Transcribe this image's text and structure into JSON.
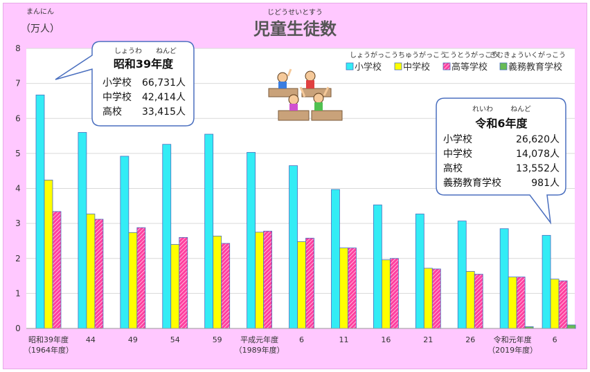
{
  "chart_data": {
    "type": "bar",
    "title": "児童生徒数",
    "title_ruby": "じどうせいとすう",
    "unit_label": "（万人）",
    "unit_ruby": "まんにん",
    "ylim": [
      0,
      8
    ],
    "yticks": [
      0,
      1,
      2,
      3,
      4,
      5,
      6,
      7,
      8
    ],
    "grid": true,
    "legend_position": "top-right",
    "categories": [
      {
        "label": "昭和39年度",
        "sub": "（1964年度）"
      },
      {
        "label": "44",
        "sub": ""
      },
      {
        "label": "49",
        "sub": ""
      },
      {
        "label": "54",
        "sub": ""
      },
      {
        "label": "59",
        "sub": ""
      },
      {
        "label": "平成元年度",
        "sub": "（1989年度）"
      },
      {
        "label": "6",
        "sub": ""
      },
      {
        "label": "11",
        "sub": ""
      },
      {
        "label": "16",
        "sub": ""
      },
      {
        "label": "21",
        "sub": ""
      },
      {
        "label": "26",
        "sub": ""
      },
      {
        "label": "令和元年度",
        "sub": "（2019年度）"
      },
      {
        "label": "6",
        "sub": ""
      }
    ],
    "series": [
      {
        "name": "小学校",
        "ruby": "しょうがっこう",
        "color": "#33ecf5",
        "pattern": "solid",
        "values": [
          6.67,
          5.6,
          4.92,
          5.26,
          5.55,
          5.03,
          4.65,
          3.97,
          3.53,
          3.27,
          3.07,
          2.85,
          2.66
        ]
      },
      {
        "name": "中学校",
        "ruby": "ちゅうがっこう",
        "color": "#ffff00",
        "pattern": "solid",
        "values": [
          4.24,
          3.27,
          2.74,
          2.4,
          2.64,
          2.75,
          2.48,
          2.3,
          1.96,
          1.72,
          1.63,
          1.47,
          1.41
        ]
      },
      {
        "name": "高等学校",
        "ruby": "こうとうがっこう",
        "color": "#ff3fa0",
        "pattern": "hatch",
        "values": [
          3.34,
          3.12,
          2.88,
          2.6,
          2.43,
          2.78,
          2.58,
          2.3,
          2.0,
          1.7,
          1.55,
          1.47,
          1.36
        ]
      },
      {
        "name": "義務教育学校",
        "ruby": "ぎむきょういくがっこう",
        "color": "#66bb55",
        "pattern": "solid",
        "values": [
          null,
          null,
          null,
          null,
          null,
          null,
          null,
          null,
          null,
          null,
          null,
          0.05,
          0.1
        ]
      }
    ]
  },
  "callout_1964": {
    "title_ruby_1": "しょうわ",
    "title_ruby_2": "ねんど",
    "title": "昭和39年度",
    "rows": [
      {
        "label": "小学校",
        "value": "66,731人"
      },
      {
        "label": "中学校",
        "value": "42,414人"
      },
      {
        "label": "高校",
        "value": "33,415人"
      }
    ]
  },
  "callout_2024": {
    "title_ruby_1": "れいわ",
    "title_ruby_2": "ねんど",
    "title": "令和6年度",
    "rows": [
      {
        "label": "小学校",
        "value": "26,620人"
      },
      {
        "label": "中学校",
        "value": "14,078人"
      },
      {
        "label": "高校",
        "value": "13,552人"
      },
      {
        "label": "義務教育学校",
        "value": "981人"
      }
    ]
  }
}
